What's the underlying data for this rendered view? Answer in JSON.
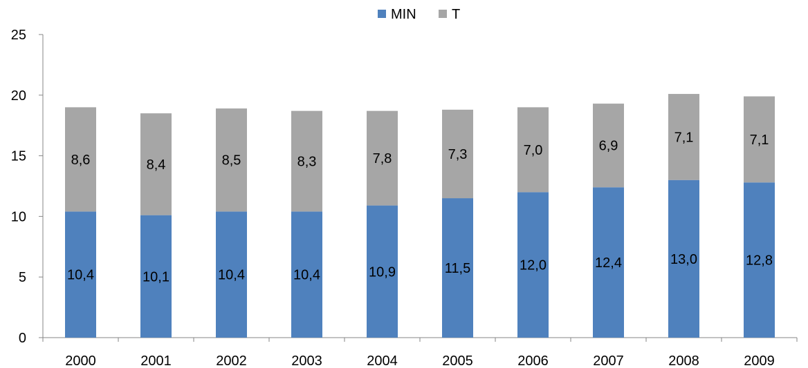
{
  "chart_data": {
    "type": "bar",
    "stacked": true,
    "categories": [
      "2000",
      "2001",
      "2002",
      "2003",
      "2004",
      "2005",
      "2006",
      "2007",
      "2008",
      "2009"
    ],
    "series": [
      {
        "name": "MIN",
        "color": "#4f81bd",
        "values": [
          10.4,
          10.1,
          10.4,
          10.4,
          10.9,
          11.5,
          12.0,
          12.4,
          13.0,
          12.8
        ],
        "labels": [
          "10,4",
          "10,1",
          "10,4",
          "10,4",
          "10,9",
          "11,5",
          "12,0",
          "12,4",
          "13,0",
          "12,8"
        ]
      },
      {
        "name": "T",
        "color": "#a6a6a6",
        "values": [
          8.6,
          8.4,
          8.5,
          8.3,
          7.8,
          7.3,
          7.0,
          6.9,
          7.1,
          7.1
        ],
        "labels": [
          "8,6",
          "8,4",
          "8,5",
          "8,3",
          "7,8",
          "7,3",
          "7,0",
          "6,9",
          "7,1",
          "7,1"
        ]
      }
    ],
    "ylim": [
      0,
      25
    ],
    "yticks": [
      0,
      5,
      10,
      15,
      20,
      25
    ],
    "ytick_labels": [
      "0",
      "5",
      "10",
      "15",
      "20",
      "25"
    ],
    "grid": false,
    "legend_position": "top-center",
    "title": "",
    "xlabel": "",
    "ylabel": ""
  }
}
